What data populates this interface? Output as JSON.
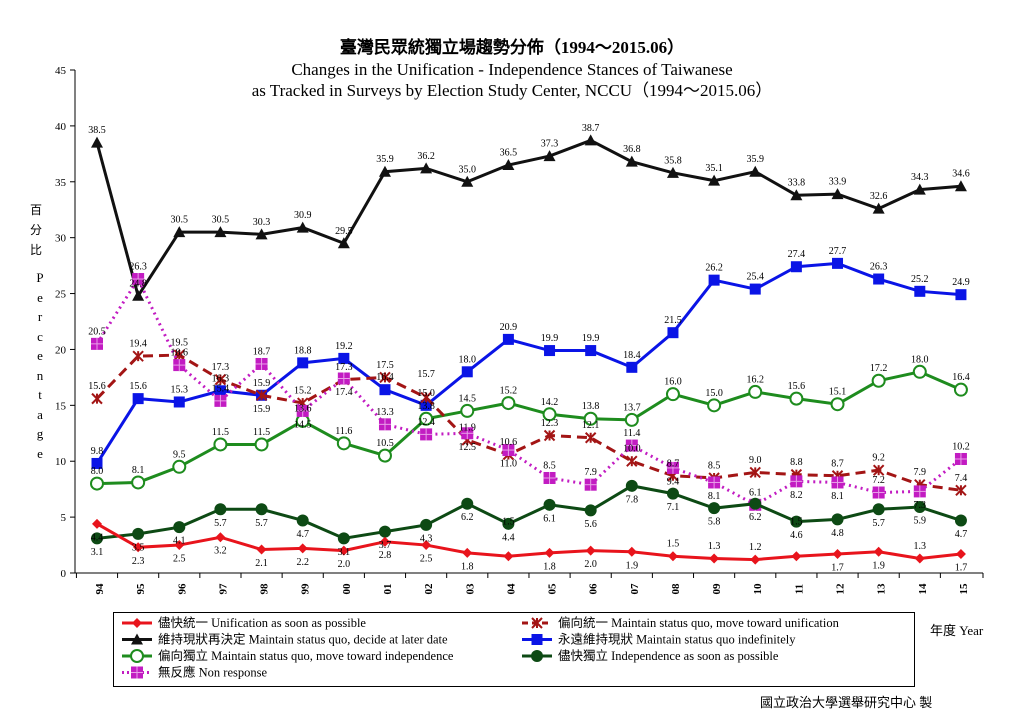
{
  "chart_data": {
    "type": "line",
    "title_zh": "臺灣民眾統獨立場趨勢分佈（1994～2015.06）",
    "title_en_1": "Changes in the Unification - Independence Stances of Taiwanese",
    "title_en_2": "as Tracked in Surveys by Election Study Center, NCCU（1994～2015.06）",
    "ylabel_zh": "百分比",
    "ylabel_en": "Percentage",
    "xlabel": "年度 Year",
    "ylim": [
      0,
      45
    ],
    "yticks": [
      "0",
      "5",
      "10",
      "15",
      "20",
      "25",
      "30",
      "35",
      "40",
      "45"
    ],
    "grid": false,
    "legend_position": "bottom",
    "categories": [
      "94",
      "95",
      "96",
      "97",
      "98",
      "99",
      "00",
      "01",
      "02",
      "03",
      "04",
      "05",
      "06",
      "07",
      "08",
      "09",
      "10",
      "11",
      "12",
      "13",
      "14",
      "15"
    ],
    "series": [
      {
        "name": "儘快統一 Unification as soon as possible",
        "color": "#e8141c",
        "marker": "diamond",
        "line": "solid",
        "values": [
          4.4,
          2.3,
          2.5,
          3.2,
          2.1,
          2.2,
          2.0,
          2.8,
          2.5,
          1.8,
          1.5,
          1.8,
          2.0,
          1.9,
          1.5,
          1.3,
          1.2,
          1.5,
          1.7,
          1.9,
          1.3,
          1.7
        ]
      },
      {
        "name": "偏向統一 Maintain status quo, move toward unification",
        "color": "#a31515",
        "marker": "x",
        "line": "dashed",
        "values": [
          15.6,
          19.4,
          19.5,
          17.3,
          15.9,
          15.2,
          17.3,
          17.5,
          15.7,
          11.9,
          10.6,
          12.3,
          12.1,
          10.0,
          8.7,
          8.5,
          9.0,
          8.8,
          8.7,
          9.2,
          7.9,
          7.4
        ]
      },
      {
        "name": "維持現狀再決定 Maintain status quo, decide at later date",
        "color": "#111111",
        "marker": "triangle",
        "line": "solid",
        "values": [
          38.5,
          24.8,
          30.5,
          30.5,
          30.3,
          30.9,
          29.5,
          35.9,
          36.2,
          35.0,
          36.5,
          37.3,
          38.7,
          36.8,
          35.8,
          35.1,
          35.9,
          33.8,
          33.9,
          32.6,
          34.3,
          34.6
        ]
      },
      {
        "name": "永遠維持現狀 Maintain status quo indefinitely",
        "color": "#0a14e6",
        "marker": "square",
        "line": "solid",
        "values": [
          9.8,
          15.6,
          15.3,
          16.3,
          15.9,
          18.8,
          19.2,
          16.4,
          15.0,
          18.0,
          20.9,
          19.9,
          19.9,
          18.4,
          21.5,
          26.2,
          25.4,
          27.4,
          27.7,
          26.3,
          25.2,
          24.9
        ]
      },
      {
        "name": "偏向獨立 Maintain status quo, move toward independence",
        "color": "#1e8c1e",
        "marker": "circle-open",
        "line": "solid",
        "values": [
          8.0,
          8.1,
          9.5,
          11.5,
          11.5,
          13.6,
          11.6,
          10.5,
          13.8,
          14.5,
          15.2,
          14.2,
          13.8,
          13.7,
          16.0,
          15.0,
          16.2,
          15.6,
          15.1,
          17.2,
          18.0,
          16.4
        ]
      },
      {
        "name": "儘快獨立 Independence as soon as possible",
        "color": "#0d4a14",
        "marker": "circle",
        "line": "solid",
        "values": [
          3.1,
          3.5,
          4.1,
          5.7,
          5.7,
          4.7,
          3.1,
          3.7,
          4.3,
          6.2,
          4.4,
          6.1,
          5.6,
          7.8,
          7.1,
          5.8,
          6.2,
          4.6,
          4.8,
          5.7,
          5.9,
          4.7
        ]
      },
      {
        "name": "無反應 Non response",
        "color": "#c21cc2",
        "marker": "square-cross",
        "line": "dotted",
        "values": [
          20.5,
          26.3,
          18.6,
          15.4,
          18.7,
          14.5,
          17.4,
          13.3,
          12.4,
          12.5,
          11.0,
          8.5,
          7.9,
          11.4,
          9.4,
          8.1,
          6.1,
          8.2,
          8.1,
          7.2,
          7.3,
          10.2
        ]
      }
    ]
  },
  "credit": "國立政治大學選舉研究中心 製"
}
